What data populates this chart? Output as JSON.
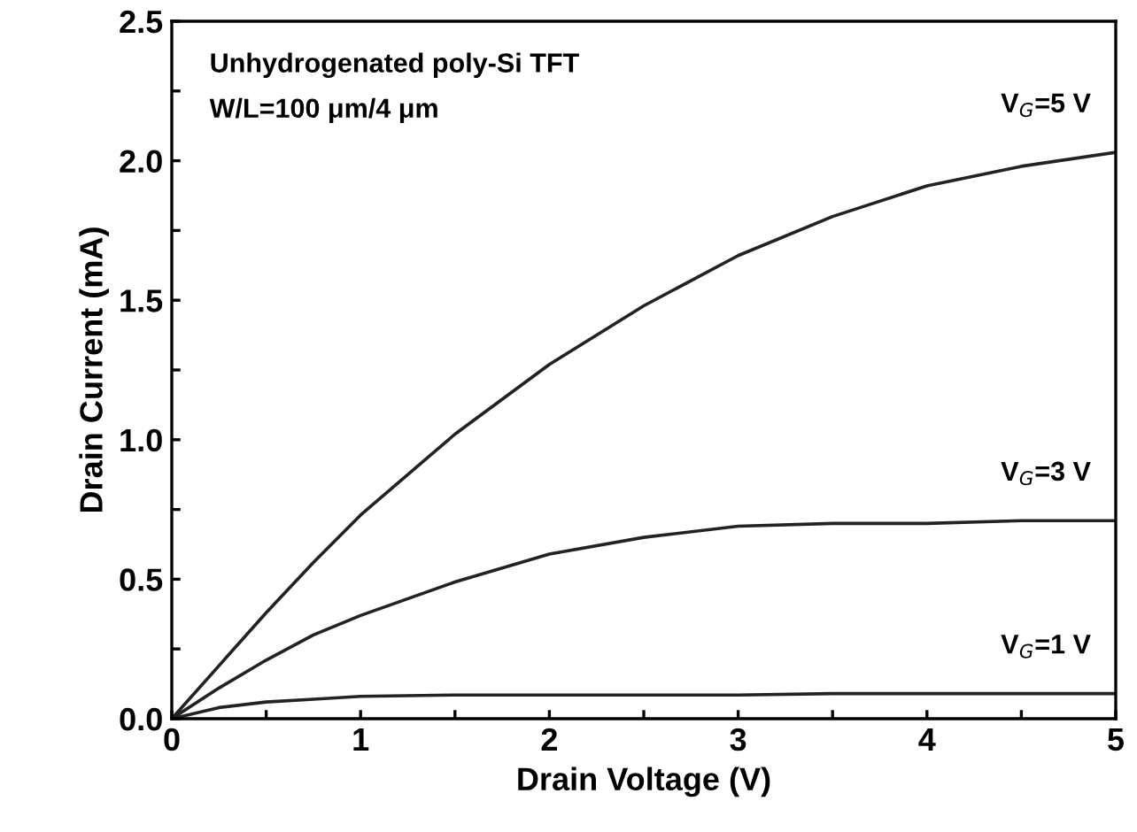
{
  "chart_data": {
    "type": "line",
    "xlabel": "Drain Voltage (V)",
    "ylabel": "Drain Current (mA)",
    "annotations": [
      "Unhydrogenated poly-Si TFT",
      "W/L=100 μm/4 μm"
    ],
    "xlim": [
      0,
      5
    ],
    "ylim": [
      0,
      2.5
    ],
    "xticks": [
      0,
      {
        "value": 0.5,
        "label": null
      },
      1,
      {
        "value": 1.5,
        "label": null
      },
      2,
      {
        "value": 2.5,
        "label": null
      },
      3,
      {
        "value": 3.5,
        "label": null
      },
      4,
      {
        "value": 4.5,
        "label": null
      },
      5
    ],
    "yticks": [
      {
        "value": 0.0,
        "label": "0.0"
      },
      {
        "value": 0.25,
        "label": null
      },
      {
        "value": 0.5,
        "label": "0.5"
      },
      {
        "value": 0.75,
        "label": null
      },
      {
        "value": 1.0,
        "label": "1.0"
      },
      {
        "value": 1.25,
        "label": null
      },
      {
        "value": 1.5,
        "label": "1.5"
      },
      {
        "value": 1.75,
        "label": null
      },
      {
        "value": 2.0,
        "label": "2.0"
      },
      {
        "value": 2.25,
        "label": null
      },
      {
        "value": 2.5,
        "label": "2.5"
      }
    ],
    "grid": false,
    "legend": false,
    "marker": "none",
    "line_style": "solid",
    "x": [
      0,
      0.25,
      0.5,
      0.75,
      1,
      1.5,
      2,
      2.5,
      3,
      3.5,
      4,
      4.5,
      5
    ],
    "series": [
      {
        "name": "V$_{G}$=5 V",
        "color": "#222222",
        "values": [
          0,
          0.19,
          0.38,
          0.56,
          0.73,
          1.02,
          1.27,
          1.48,
          1.66,
          1.8,
          1.91,
          1.98,
          2.03
        ]
      },
      {
        "name": "V$_{G}$=3 V",
        "color": "#222222",
        "values": [
          0,
          0.11,
          0.21,
          0.3,
          0.37,
          0.49,
          0.59,
          0.65,
          0.69,
          0.7,
          0.7,
          0.71,
          0.71
        ]
      },
      {
        "name": "V$_{G}$=1 V",
        "color": "#222222",
        "values": [
          0,
          0.04,
          0.06,
          0.07,
          0.08,
          0.085,
          0.085,
          0.085,
          0.085,
          0.09,
          0.09,
          0.09,
          0.09
        ]
      }
    ]
  }
}
